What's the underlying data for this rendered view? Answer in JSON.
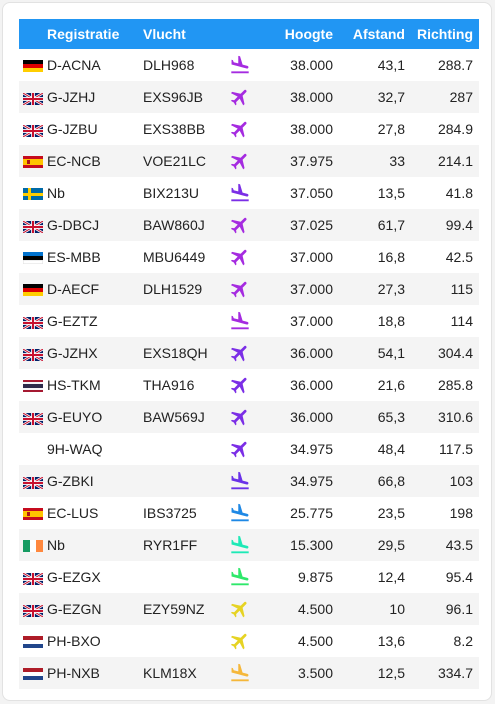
{
  "headers": {
    "reg": "Registratie",
    "flight": "Vlucht",
    "alt": "Hoogte",
    "dist": "Afstand",
    "dir": "Richting"
  },
  "colors": {
    "header": "#2196f3",
    "cruise": "#a52be0",
    "descend": "#7b2ee6",
    "blue": "#1e88e5",
    "teal": "#1de9b6",
    "green": "#2ee86a",
    "yellow": "#e6d323",
    "orange": "#f5b73a"
  },
  "rows": [
    {
      "flag": "de",
      "reg": "D-ACNA",
      "flight": "DLH968",
      "icon": "landing-icon",
      "color": "#a52be0",
      "alt": "38.000",
      "dist": "43,1",
      "dir": "288.7"
    },
    {
      "flag": "gb",
      "reg": "G-JZHJ",
      "flight": "EXS96JB",
      "icon": "airplane-icon",
      "color": "#a52be0",
      "alt": "38.000",
      "dist": "32,7",
      "dir": "287"
    },
    {
      "flag": "gb",
      "reg": "G-JZBU",
      "flight": "EXS38BB",
      "icon": "airplane-icon",
      "color": "#a52be0",
      "alt": "38.000",
      "dist": "27,8",
      "dir": "284.9"
    },
    {
      "flag": "es",
      "reg": "EC-NCB",
      "flight": "VOE21LC",
      "icon": "airplane-icon",
      "color": "#a52be0",
      "alt": "37.975",
      "dist": "33",
      "dir": "214.1"
    },
    {
      "flag": "se",
      "reg": "Nb",
      "flight": "BIX213U",
      "icon": "landing-icon",
      "color": "#7b2ee6",
      "alt": "37.050",
      "dist": "13,5",
      "dir": "41.8"
    },
    {
      "flag": "gb",
      "reg": "G-DBCJ",
      "flight": "BAW860J",
      "icon": "airplane-icon",
      "color": "#a52be0",
      "alt": "37.025",
      "dist": "61,7",
      "dir": "99.4"
    },
    {
      "flag": "ee",
      "reg": "ES-MBB",
      "flight": "MBU6449",
      "icon": "airplane-icon",
      "color": "#a52be0",
      "alt": "37.000",
      "dist": "16,8",
      "dir": "42.5"
    },
    {
      "flag": "de",
      "reg": "D-AECF",
      "flight": "DLH1529",
      "icon": "airplane-icon",
      "color": "#a52be0",
      "alt": "37.000",
      "dist": "27,3",
      "dir": "115"
    },
    {
      "flag": "gb",
      "reg": "G-EZTZ",
      "flight": "",
      "icon": "landing-icon",
      "color": "#a52be0",
      "alt": "37.000",
      "dist": "18,8",
      "dir": "114"
    },
    {
      "flag": "gb",
      "reg": "G-JZHX",
      "flight": "EXS18QH",
      "icon": "airplane-icon",
      "color": "#7b2ee6",
      "alt": "36.000",
      "dist": "54,1",
      "dir": "304.4"
    },
    {
      "flag": "th",
      "reg": "HS-TKM",
      "flight": "THA916",
      "icon": "airplane-icon",
      "color": "#7b2ee6",
      "alt": "36.000",
      "dist": "21,6",
      "dir": "285.8"
    },
    {
      "flag": "gb",
      "reg": "G-EUYO",
      "flight": "BAW569J",
      "icon": "airplane-icon",
      "color": "#7b2ee6",
      "alt": "36.000",
      "dist": "65,3",
      "dir": "310.6"
    },
    {
      "flag": "",
      "reg": "9H-WAQ",
      "flight": "",
      "icon": "airplane-icon",
      "color": "#7b2ee6",
      "alt": "34.975",
      "dist": "48,4",
      "dir": "117.5"
    },
    {
      "flag": "gb",
      "reg": "G-ZBKI",
      "flight": "",
      "icon": "landing-icon",
      "color": "#6a31e8",
      "alt": "34.975",
      "dist": "66,8",
      "dir": "103"
    },
    {
      "flag": "es",
      "reg": "EC-LUS",
      "flight": "IBS3725",
      "icon": "landing-icon",
      "color": "#1e88e5",
      "alt": "25.775",
      "dist": "23,5",
      "dir": "198"
    },
    {
      "flag": "ie",
      "reg": "Nb",
      "flight": "RYR1FF",
      "icon": "landing-icon",
      "color": "#1de9b6",
      "alt": "15.300",
      "dist": "29,5",
      "dir": "43.5"
    },
    {
      "flag": "gb",
      "reg": "G-EZGX",
      "flight": "",
      "icon": "landing-icon",
      "color": "#2ee86a",
      "alt": "9.875",
      "dist": "12,4",
      "dir": "95.4"
    },
    {
      "flag": "gb",
      "reg": "G-EZGN",
      "flight": "EZY59NZ",
      "icon": "airplane-icon",
      "color": "#e6d323",
      "alt": "4.500",
      "dist": "10",
      "dir": "96.1"
    },
    {
      "flag": "nl",
      "reg": "PH-BXO",
      "flight": "",
      "icon": "airplane-icon",
      "color": "#e6d323",
      "alt": "4.500",
      "dist": "13,6",
      "dir": "8.2"
    },
    {
      "flag": "nl",
      "reg": "PH-NXB",
      "flight": "KLM18X",
      "icon": "landing-icon",
      "color": "#f5b73a",
      "alt": "3.500",
      "dist": "12,5",
      "dir": "334.7"
    }
  ]
}
